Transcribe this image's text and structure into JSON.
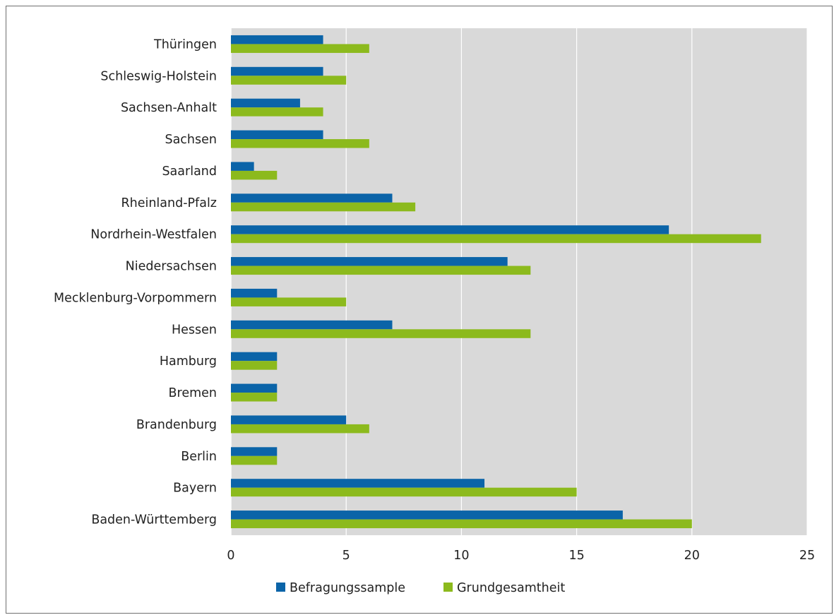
{
  "chart_data": {
    "type": "bar",
    "orientation": "horizontal",
    "categories": [
      "Thüringen",
      "Schleswig-Holstein",
      "Sachsen-Anhalt",
      "Sachsen",
      "Saarland",
      "Rheinland-Pfalz",
      "Nordrhein-Westfalen",
      "Niedersachsen",
      "Mecklenburg-Vorpommern",
      "Hessen",
      "Hamburg",
      "Bremen",
      "Brandenburg",
      "Berlin",
      "Bayern",
      "Baden-Württemberg"
    ],
    "series": [
      {
        "name": "Befragungssample",
        "color": "#0b64a8",
        "values": [
          4,
          4,
          3,
          4,
          1,
          7,
          19,
          12,
          2,
          7,
          2,
          2,
          5,
          2,
          11,
          17
        ]
      },
      {
        "name": "Grundgesamtheit",
        "color": "#8cba1d",
        "values": [
          6,
          5,
          4,
          6,
          2,
          8,
          23,
          13,
          5,
          13,
          2,
          2,
          6,
          2,
          15,
          20
        ]
      }
    ],
    "xlim": [
      0,
      25
    ],
    "xticks": [
      "0",
      "5",
      "10",
      "15",
      "20",
      "25"
    ],
    "grid": "vertical",
    "plot_background": "#d9d9d9",
    "legend_position": "bottom"
  }
}
